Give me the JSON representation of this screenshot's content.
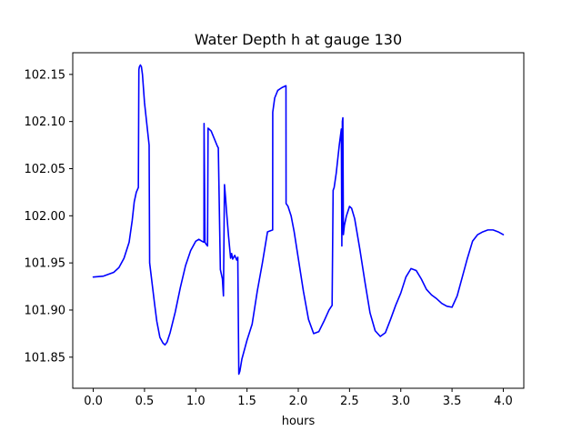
{
  "chart_data": {
    "type": "line",
    "title": "Water Depth h at gauge 130",
    "xlabel": "hours",
    "ylabel": "",
    "xlim": [
      -0.2,
      4.2
    ],
    "ylim": [
      101.817,
      102.173
    ],
    "xticks": [
      0.0,
      0.5,
      1.0,
      1.5,
      2.0,
      2.5,
      3.0,
      3.5,
      4.0
    ],
    "xtick_labels": [
      "0.0",
      "0.5",
      "1.0",
      "1.5",
      "2.0",
      "2.5",
      "3.0",
      "3.5",
      "4.0"
    ],
    "yticks": [
      101.85,
      101.9,
      101.95,
      102.0,
      102.05,
      102.1,
      102.15
    ],
    "ytick_labels": [
      "101.85",
      "101.90",
      "101.95",
      "102.00",
      "102.05",
      "102.10",
      "102.15"
    ],
    "grid": false,
    "series": [
      {
        "color": "#0000ff",
        "x": [
          0.0,
          0.1,
          0.2,
          0.25,
          0.3,
          0.35,
          0.38,
          0.4,
          0.42,
          0.44,
          0.445,
          0.45,
          0.46,
          0.47,
          0.48,
          0.5,
          0.52,
          0.545,
          0.55,
          0.6,
          0.62,
          0.65,
          0.68,
          0.7,
          0.72,
          0.75,
          0.8,
          0.85,
          0.9,
          0.95,
          1.0,
          1.03,
          1.06,
          1.08,
          1.081,
          1.09,
          1.1,
          1.115,
          1.12,
          1.15,
          1.18,
          1.21,
          1.22,
          1.24,
          1.26,
          1.27,
          1.28,
          1.29,
          1.3,
          1.32,
          1.34,
          1.35,
          1.36,
          1.38,
          1.4,
          1.41,
          1.42,
          1.43,
          1.45,
          1.5,
          1.55,
          1.6,
          1.65,
          1.7,
          1.75,
          1.751,
          1.77,
          1.8,
          1.84,
          1.88,
          1.881,
          1.9,
          1.93,
          1.96,
          2.0,
          2.05,
          2.1,
          2.15,
          2.2,
          2.25,
          2.3,
          2.33,
          2.34,
          2.35,
          2.37,
          2.4,
          2.42,
          2.425,
          2.43,
          2.435,
          2.44,
          2.445,
          2.45,
          2.47,
          2.5,
          2.52,
          2.55,
          2.6,
          2.65,
          2.7,
          2.75,
          2.8,
          2.85,
          2.9,
          2.95,
          3.0,
          3.05,
          3.1,
          3.15,
          3.2,
          3.25,
          3.3,
          3.35,
          3.4,
          3.45,
          3.5,
          3.55,
          3.6,
          3.65,
          3.7,
          3.75,
          3.8,
          3.85,
          3.9,
          3.95,
          4.0
        ],
        "y": [
          101.935,
          101.936,
          101.94,
          101.945,
          101.955,
          101.972,
          101.995,
          102.015,
          102.025,
          102.03,
          102.155,
          102.158,
          102.16,
          102.158,
          102.15,
          102.12,
          102.1,
          102.075,
          101.95,
          101.905,
          101.888,
          101.871,
          101.865,
          101.863,
          101.866,
          101.876,
          101.898,
          101.924,
          101.947,
          101.963,
          101.973,
          101.975,
          101.973,
          101.972,
          102.098,
          101.972,
          101.97,
          101.968,
          102.093,
          102.09,
          102.082,
          102.074,
          102.072,
          101.943,
          101.933,
          101.915,
          102.033,
          102.02,
          102.005,
          101.978,
          101.955,
          101.96,
          101.954,
          101.958,
          101.953,
          101.956,
          101.832,
          101.835,
          101.848,
          101.868,
          101.885,
          101.92,
          101.95,
          101.983,
          101.985,
          102.11,
          102.125,
          102.133,
          102.136,
          102.138,
          102.013,
          102.01,
          102.0,
          101.983,
          101.955,
          101.92,
          101.89,
          101.875,
          101.877,
          101.888,
          101.9,
          101.905,
          102.027,
          102.03,
          102.045,
          102.075,
          102.092,
          101.968,
          102.1,
          102.104,
          101.98,
          101.985,
          101.99,
          102.0,
          102.01,
          102.008,
          101.997,
          101.965,
          101.93,
          101.897,
          101.878,
          101.872,
          101.876,
          101.89,
          101.905,
          101.918,
          101.935,
          101.944,
          101.942,
          101.933,
          101.922,
          101.916,
          101.912,
          101.907,
          101.904,
          101.903,
          101.915,
          101.935,
          101.955,
          101.973,
          101.98,
          101.983,
          101.985,
          101.985,
          101.983,
          101.98
        ]
      }
    ]
  }
}
